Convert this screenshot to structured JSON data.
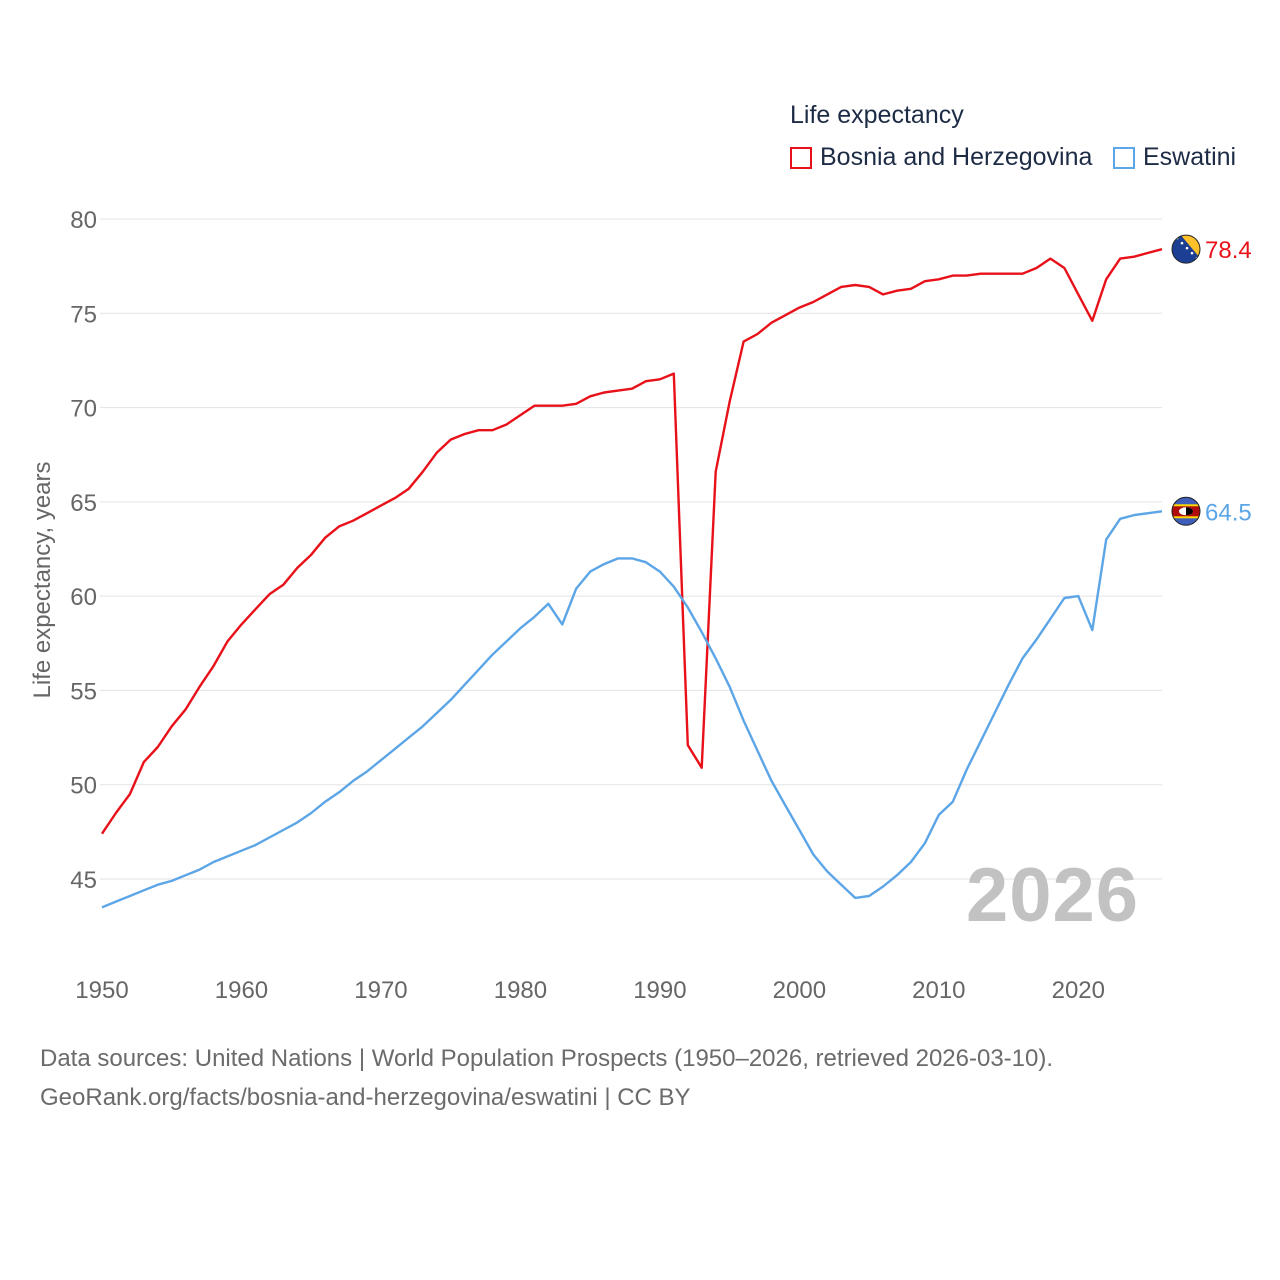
{
  "chart_data": {
    "type": "line",
    "legend_title": "Life expectancy",
    "ylabel": "Life expectancy, years",
    "xlabel": "",
    "xlim": [
      1950,
      2026
    ],
    "ylim": [
      42,
      81
    ],
    "x_ticks": [
      1950,
      1960,
      1970,
      1980,
      1990,
      2000,
      2010,
      2020
    ],
    "y_ticks": [
      45,
      50,
      55,
      60,
      65,
      70,
      75,
      80
    ],
    "grid": true,
    "legend_position": "top-right",
    "current_year_label": "2026",
    "series": [
      {
        "name": "Bosnia and Herzegovina",
        "color": "#e8111a",
        "flag_icon": "bosnia-flag-icon",
        "end_label": "78.4",
        "points": [
          [
            1950,
            47.4
          ],
          [
            1951,
            48.5
          ],
          [
            1952,
            49.5
          ],
          [
            1953,
            51.2
          ],
          [
            1954,
            52.0
          ],
          [
            1955,
            53.1
          ],
          [
            1956,
            54.0
          ],
          [
            1957,
            55.2
          ],
          [
            1958,
            56.3
          ],
          [
            1959,
            57.6
          ],
          [
            1960,
            58.5
          ],
          [
            1961,
            59.3
          ],
          [
            1962,
            60.1
          ],
          [
            1963,
            60.6
          ],
          [
            1964,
            61.5
          ],
          [
            1965,
            62.2
          ],
          [
            1966,
            63.1
          ],
          [
            1967,
            63.7
          ],
          [
            1968,
            64.0
          ],
          [
            1969,
            64.4
          ],
          [
            1970,
            64.8
          ],
          [
            1971,
            65.2
          ],
          [
            1972,
            65.7
          ],
          [
            1973,
            66.6
          ],
          [
            1974,
            67.6
          ],
          [
            1975,
            68.3
          ],
          [
            1976,
            68.6
          ],
          [
            1977,
            68.8
          ],
          [
            1978,
            68.8
          ],
          [
            1979,
            69.1
          ],
          [
            1980,
            69.6
          ],
          [
            1981,
            70.1
          ],
          [
            1982,
            70.1
          ],
          [
            1983,
            70.1
          ],
          [
            1984,
            70.2
          ],
          [
            1985,
            70.6
          ],
          [
            1986,
            70.8
          ],
          [
            1987,
            70.9
          ],
          [
            1988,
            71.0
          ],
          [
            1989,
            71.4
          ],
          [
            1990,
            71.5
          ],
          [
            1991,
            71.8
          ],
          [
            1992,
            52.1
          ],
          [
            1993,
            50.9
          ],
          [
            1994,
            66.6
          ],
          [
            1995,
            70.3
          ],
          [
            1996,
            73.5
          ],
          [
            1997,
            73.9
          ],
          [
            1998,
            74.5
          ],
          [
            1999,
            74.9
          ],
          [
            2000,
            75.3
          ],
          [
            2001,
            75.6
          ],
          [
            2002,
            76.0
          ],
          [
            2003,
            76.4
          ],
          [
            2004,
            76.5
          ],
          [
            2005,
            76.4
          ],
          [
            2006,
            76.0
          ],
          [
            2007,
            76.2
          ],
          [
            2008,
            76.3
          ],
          [
            2009,
            76.7
          ],
          [
            2010,
            76.8
          ],
          [
            2011,
            77.0
          ],
          [
            2012,
            77.0
          ],
          [
            2013,
            77.1
          ],
          [
            2014,
            77.1
          ],
          [
            2015,
            77.1
          ],
          [
            2016,
            77.1
          ],
          [
            2017,
            77.4
          ],
          [
            2018,
            77.9
          ],
          [
            2019,
            77.4
          ],
          [
            2020,
            76.0
          ],
          [
            2021,
            74.6
          ],
          [
            2022,
            76.8
          ],
          [
            2023,
            77.9
          ],
          [
            2024,
            78.0
          ],
          [
            2025,
            78.2
          ],
          [
            2026,
            78.4
          ]
        ]
      },
      {
        "name": "Eswatini",
        "color": "#5ca5e6",
        "flag_icon": "eswatini-flag-icon",
        "end_label": "64.5",
        "points": [
          [
            1950,
            43.5
          ],
          [
            1951,
            43.8
          ],
          [
            1952,
            44.1
          ],
          [
            1953,
            44.4
          ],
          [
            1954,
            44.7
          ],
          [
            1955,
            44.9
          ],
          [
            1956,
            45.2
          ],
          [
            1957,
            45.5
          ],
          [
            1958,
            45.9
          ],
          [
            1959,
            46.2
          ],
          [
            1960,
            46.5
          ],
          [
            1961,
            46.8
          ],
          [
            1962,
            47.2
          ],
          [
            1963,
            47.6
          ],
          [
            1964,
            48.0
          ],
          [
            1965,
            48.5
          ],
          [
            1966,
            49.1
          ],
          [
            1967,
            49.6
          ],
          [
            1968,
            50.2
          ],
          [
            1969,
            50.7
          ],
          [
            1970,
            51.3
          ],
          [
            1971,
            51.9
          ],
          [
            1972,
            52.5
          ],
          [
            1973,
            53.1
          ],
          [
            1974,
            53.8
          ],
          [
            1975,
            54.5
          ],
          [
            1976,
            55.3
          ],
          [
            1977,
            56.1
          ],
          [
            1978,
            56.9
          ],
          [
            1979,
            57.6
          ],
          [
            1980,
            58.3
          ],
          [
            1981,
            58.9
          ],
          [
            1982,
            59.6
          ],
          [
            1983,
            58.5
          ],
          [
            1984,
            60.4
          ],
          [
            1985,
            61.3
          ],
          [
            1986,
            61.7
          ],
          [
            1987,
            62.0
          ],
          [
            1988,
            62.0
          ],
          [
            1989,
            61.8
          ],
          [
            1990,
            61.3
          ],
          [
            1991,
            60.5
          ],
          [
            1992,
            59.4
          ],
          [
            1993,
            58.1
          ],
          [
            1994,
            56.7
          ],
          [
            1995,
            55.2
          ],
          [
            1996,
            53.4
          ],
          [
            1997,
            51.8
          ],
          [
            1998,
            50.2
          ],
          [
            1999,
            48.9
          ],
          [
            2000,
            47.6
          ],
          [
            2001,
            46.3
          ],
          [
            2002,
            45.4
          ],
          [
            2003,
            44.7
          ],
          [
            2004,
            44.0
          ],
          [
            2005,
            44.1
          ],
          [
            2006,
            44.6
          ],
          [
            2007,
            45.2
          ],
          [
            2008,
            45.9
          ],
          [
            2009,
            46.9
          ],
          [
            2010,
            48.4
          ],
          [
            2011,
            49.1
          ],
          [
            2012,
            50.8
          ],
          [
            2013,
            52.3
          ],
          [
            2014,
            53.8
          ],
          [
            2015,
            55.3
          ],
          [
            2016,
            56.7
          ],
          [
            2017,
            57.7
          ],
          [
            2018,
            58.8
          ],
          [
            2019,
            59.9
          ],
          [
            2020,
            60.0
          ],
          [
            2021,
            58.2
          ],
          [
            2022,
            63.0
          ],
          [
            2023,
            64.1
          ],
          [
            2024,
            64.3
          ],
          [
            2025,
            64.4
          ],
          [
            2026,
            64.5
          ]
        ]
      }
    ]
  },
  "footer": {
    "line1": "Data sources: United Nations | World Population Prospects (1950–2026, retrieved 2026-03-10).",
    "line2": "GeoRank.org/facts/bosnia-and-herzegovina/eswatini | CC BY"
  }
}
